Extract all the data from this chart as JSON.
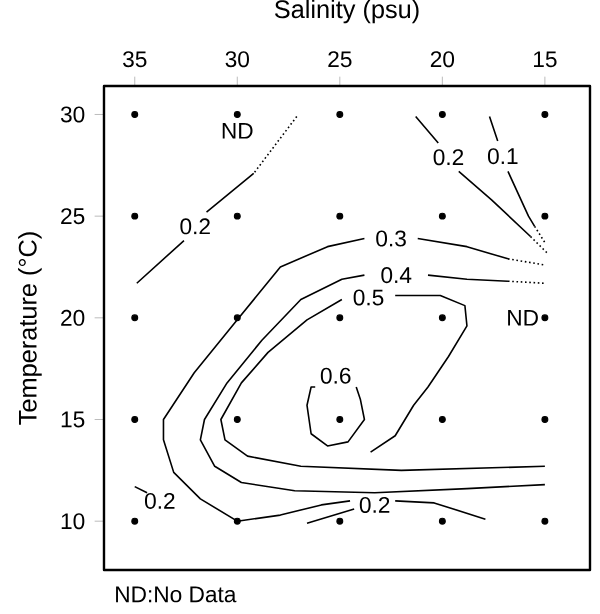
{
  "chart_data": {
    "type": "line",
    "xlabel": "Salinity (psu)",
    "ylabel": "Temperature (°C)",
    "xlim": [
      36.5,
      12.8
    ],
    "ylim": [
      7.6,
      31.4
    ],
    "xticks": [
      35,
      30,
      25,
      20,
      15
    ],
    "yticks": [
      10,
      15,
      20,
      25,
      30
    ],
    "series": [
      {
        "type": "scatter",
        "marker": "circle",
        "color": "#000000",
        "x": [
          35,
          30,
          25,
          20,
          15,
          35,
          30,
          25,
          20,
          15,
          35,
          30,
          25,
          20,
          15,
          35,
          30,
          25,
          20,
          15,
          35,
          30,
          25,
          20,
          15
        ],
        "values": [
          30,
          30,
          30,
          30,
          30,
          25,
          25,
          25,
          25,
          25,
          20,
          20,
          20,
          20,
          20,
          15,
          15,
          15,
          15,
          15,
          10,
          10,
          10,
          10,
          10
        ],
        "value_labels": [
          null,
          "ND",
          null,
          null,
          null,
          null,
          null,
          null,
          null,
          null,
          null,
          null,
          null,
          null,
          "ND",
          null,
          null,
          null,
          null,
          null,
          null,
          null,
          null,
          null,
          null
        ]
      },
      {
        "color": "#000000",
        "line_style": "dotted",
        "x": [
          27.1,
          29.2
        ],
        "values": [
          29.9,
          27.1
        ]
      },
      {
        "name": "0.2",
        "color": "#000000",
        "line_style": "solid",
        "x": [
          29.2,
          31.5,
          null,
          32.6,
          34.9
        ],
        "values": [
          27.1,
          25.2,
          null,
          23.8,
          21.7
        ]
      },
      {
        "name": "0.2",
        "color": "#000000",
        "line_style": "solid",
        "x": [
          21.3,
          20.2,
          null,
          19.2,
          17.6,
          15.7
        ],
        "values": [
          29.9,
          28.6,
          null,
          27.2,
          25.8,
          24.0
        ]
      },
      {
        "color": "#000000",
        "line_style": "dotted",
        "x": [
          15.7,
          14.9
        ],
        "values": [
          24.0,
          23.2
        ]
      },
      {
        "name": "0.1",
        "color": "#000000",
        "line_style": "solid",
        "x": [
          17.7,
          17.3,
          null,
          16.8,
          15.8,
          15.5
        ],
        "values": [
          29.9,
          28.7,
          null,
          27.2,
          25.0,
          24.5
        ]
      },
      {
        "color": "#000000",
        "line_style": "dotted",
        "x": [
          15.5,
          15.0
        ],
        "values": [
          24.5,
          23.7
        ]
      },
      {
        "color": "#000000",
        "line_style": "dotted",
        "x": [
          16.8,
          15.0
        ],
        "values": [
          22.9,
          22.6
        ]
      },
      {
        "name": "0.3",
        "color": "#000000",
        "line_style": "solid",
        "x": [
          16.8,
          18.8,
          21.2,
          null,
          23.8,
          25.6,
          27.9,
          30.0,
          32.1,
          33.6,
          33.6,
          33.1,
          31.8,
          30.0,
          27.9,
          25.9,
          24.5
        ],
        "values": [
          22.9,
          23.5,
          23.9,
          null,
          23.9,
          23.5,
          22.5,
          19.9,
          17.3,
          15.0,
          14.0,
          12.4,
          11.1,
          10.0,
          10.3,
          10.8,
          11.0
        ]
      },
      {
        "color": "#000000",
        "line_style": "dotted",
        "x": [
          16.8,
          15.0
        ],
        "values": [
          21.8,
          21.7
        ]
      },
      {
        "name": "0.4",
        "color": "#000000",
        "line_style": "solid",
        "x": [
          16.8,
          18.8,
          20.7,
          null,
          23.8,
          24.9,
          26.9,
          28.8,
          30.5,
          31.6,
          31.8,
          31.1,
          29.8,
          27.2,
          23.3,
          18.8,
          15.0
        ],
        "values": [
          21.8,
          21.9,
          22.1,
          null,
          22.1,
          21.9,
          20.9,
          18.9,
          16.8,
          15.0,
          14.0,
          12.7,
          11.9,
          11.5,
          11.4,
          11.6,
          11.8
        ]
      },
      {
        "name": "0.5",
        "color": "#000000",
        "line_style": "solid",
        "x": [
          15.0,
          22.0,
          26.9,
          29.5,
          30.6,
          30.8,
          29.8,
          28.5,
          26.6,
          24.9,
          null,
          22.3,
          20.1,
          18.9,
          18.8,
          19.7,
          20.7,
          21.4,
          22.3,
          23.5
        ],
        "values": [
          12.7,
          12.5,
          12.7,
          13.2,
          14.0,
          15.0,
          16.8,
          18.3,
          19.9,
          20.9,
          null,
          21.1,
          21.1,
          20.6,
          19.6,
          18.1,
          16.6,
          15.7,
          14.2,
          13.4
        ]
      },
      {
        "name": "0.6",
        "color": "#000000",
        "line_style": "solid",
        "x": [
          24.2,
          24.0,
          23.8,
          24.6,
          25.6,
          26.4,
          26.6,
          26.4,
          26.2
        ],
        "values": [
          16.6,
          16.0,
          15.0,
          13.9,
          13.7,
          14.3,
          15.7,
          16.6,
          16.6
        ]
      },
      {
        "name": "0.2",
        "color": "#000000",
        "line_style": "solid",
        "x": [
          26.6,
          24.3,
          null,
          22.3,
          20.4,
          17.9
        ],
        "values": [
          9.9,
          10.6,
          null,
          11.0,
          10.9,
          10.1
        ]
      },
      {
        "name": "0.2",
        "color": "#000000",
        "line_style": "solid",
        "x": [
          35.0,
          34.4
        ],
        "values": [
          11.7,
          11.4
        ]
      }
    ],
    "annotations": [
      "ND:No Data"
    ]
  }
}
